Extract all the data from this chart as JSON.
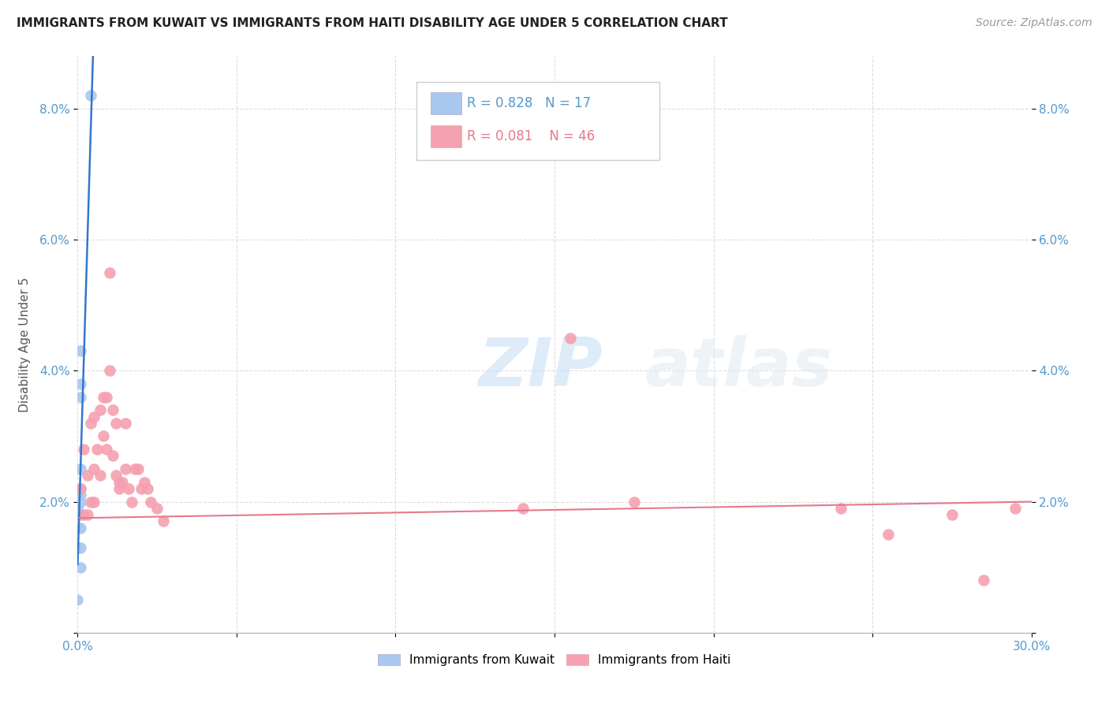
{
  "title": "IMMIGRANTS FROM KUWAIT VS IMMIGRANTS FROM HAITI DISABILITY AGE UNDER 5 CORRELATION CHART",
  "source": "Source: ZipAtlas.com",
  "ylabel": "Disability Age Under 5",
  "legend_kuwait": "Immigrants from Kuwait",
  "legend_haiti": "Immigrants from Haiti",
  "r_kuwait": "R = 0.828",
  "n_kuwait": "N = 17",
  "r_haiti": "R = 0.081",
  "n_haiti": "N = 46",
  "xlim": [
    0.0,
    0.3
  ],
  "ylim": [
    0.0,
    0.088
  ],
  "yticks": [
    0.0,
    0.02,
    0.04,
    0.06,
    0.08
  ],
  "ytick_labels": [
    "",
    "2.0%",
    "4.0%",
    "6.0%",
    "8.0%"
  ],
  "xtick_labels": [
    "0.0%",
    "",
    "",
    "",
    "",
    "",
    "30.0%"
  ],
  "background_color": "#ffffff",
  "kuwait_color": "#a8c8f0",
  "haiti_color": "#f5a0b0",
  "kuwait_line_color": "#3377cc",
  "haiti_line_color": "#e8788a",
  "watermark_zip": "ZIP",
  "watermark_atlas": "atlas",
  "kuwait_scatter_x": [
    0.004,
    0.001,
    0.001,
    0.001,
    0.001,
    0.001,
    0.001,
    0.001,
    0.001,
    0.001,
    0.001,
    0.001,
    0.0,
    0.0,
    0.0,
    0.0,
    0.0
  ],
  "kuwait_scatter_y": [
    0.082,
    0.043,
    0.038,
    0.036,
    0.025,
    0.022,
    0.021,
    0.02,
    0.018,
    0.016,
    0.013,
    0.01,
    0.021,
    0.019,
    0.016,
    0.013,
    0.005
  ],
  "haiti_scatter_x": [
    0.001,
    0.002,
    0.002,
    0.003,
    0.003,
    0.004,
    0.004,
    0.005,
    0.005,
    0.005,
    0.006,
    0.007,
    0.007,
    0.008,
    0.008,
    0.009,
    0.009,
    0.01,
    0.01,
    0.011,
    0.011,
    0.012,
    0.012,
    0.013,
    0.013,
    0.014,
    0.015,
    0.015,
    0.016,
    0.017,
    0.018,
    0.019,
    0.02,
    0.021,
    0.022,
    0.023,
    0.025,
    0.027,
    0.14,
    0.155,
    0.175,
    0.24,
    0.255,
    0.275,
    0.285,
    0.295
  ],
  "haiti_scatter_y": [
    0.022,
    0.028,
    0.018,
    0.024,
    0.018,
    0.032,
    0.02,
    0.033,
    0.025,
    0.02,
    0.028,
    0.034,
    0.024,
    0.036,
    0.03,
    0.036,
    0.028,
    0.055,
    0.04,
    0.034,
    0.027,
    0.032,
    0.024,
    0.023,
    0.022,
    0.023,
    0.032,
    0.025,
    0.022,
    0.02,
    0.025,
    0.025,
    0.022,
    0.023,
    0.022,
    0.02,
    0.019,
    0.017,
    0.019,
    0.045,
    0.02,
    0.019,
    0.015,
    0.018,
    0.008,
    0.019
  ],
  "title_fontsize": 11,
  "tick_fontsize": 11,
  "ylabel_fontsize": 11
}
